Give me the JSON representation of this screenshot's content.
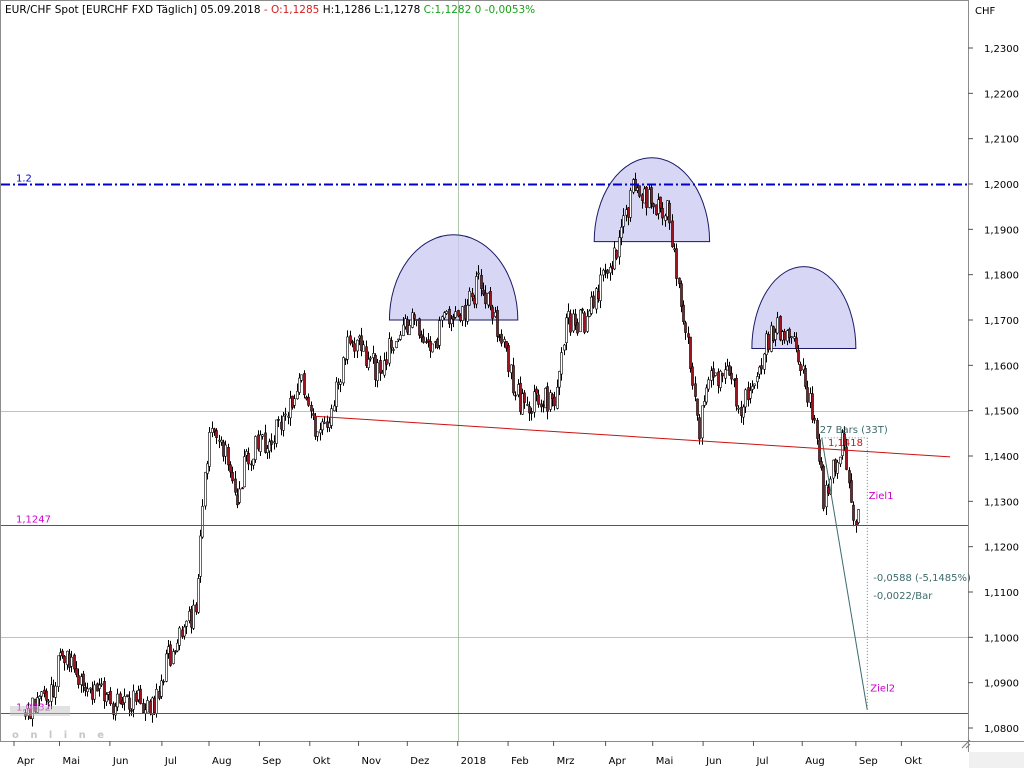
{
  "header": {
    "title": "EUR/CHF Spot [EURCHF FXD  Täglich] 05.09.2018",
    "ohlc": [
      {
        "text": " - O:1,1285",
        "color": "#d42020"
      },
      {
        "text": " H:1,1286",
        "color": "#000000"
      },
      {
        "text": " L:1,1278",
        "color": "#000000"
      },
      {
        "text": " C:1,1282",
        "color": "#16a316"
      },
      {
        "text": " 0 -0,0053%",
        "color": "#16a316"
      }
    ]
  },
  "chart_data": {
    "type": "candlestick",
    "y_unit": "CHF",
    "ylim": [
      1.077,
      1.2455
    ],
    "y_ticks": [
      {
        "value": 1.08,
        "label": "1,0800"
      },
      {
        "value": 1.09,
        "label": "1,0900"
      },
      {
        "value": 1.1,
        "label": "1,1000"
      },
      {
        "value": 1.11,
        "label": "1,1100"
      },
      {
        "value": 1.12,
        "label": "1,1200"
      },
      {
        "value": 1.13,
        "label": "1,1300"
      },
      {
        "value": 1.14,
        "label": "1,1400"
      },
      {
        "value": 1.15,
        "label": "1,1500"
      },
      {
        "value": 1.16,
        "label": "1,1600"
      },
      {
        "value": 1.17,
        "label": "1,1700"
      },
      {
        "value": 1.18,
        "label": "1,1800"
      },
      {
        "value": 1.19,
        "label": "1,1900"
      },
      {
        "value": 1.2,
        "label": "1,2000"
      },
      {
        "value": 1.21,
        "label": "1,2100"
      },
      {
        "value": 1.22,
        "label": "1,2200"
      },
      {
        "value": 1.23,
        "label": "1,2300"
      }
    ],
    "x_ticks": [
      {
        "date": "2017-04-03",
        "label": "Apr"
      },
      {
        "date": "2017-05-01",
        "label": "Mai"
      },
      {
        "date": "2017-06-01",
        "label": "Jun"
      },
      {
        "date": "2017-07-03",
        "label": "Jul"
      },
      {
        "date": "2017-08-01",
        "label": "Aug"
      },
      {
        "date": "2017-09-01",
        "label": "Sep"
      },
      {
        "date": "2017-10-02",
        "label": "Okt"
      },
      {
        "date": "2017-11-01",
        "label": "Nov"
      },
      {
        "date": "2017-12-01",
        "label": "Dez"
      },
      {
        "date": "2018-01-01",
        "label": "2018"
      },
      {
        "date": "2018-02-01",
        "label": "Feb"
      },
      {
        "date": "2018-03-01",
        "label": "Mrz"
      },
      {
        "date": "2018-04-02",
        "label": "Apr"
      },
      {
        "date": "2018-05-01",
        "label": "Mai"
      },
      {
        "date": "2018-06-01",
        "label": "Jun"
      },
      {
        "date": "2018-07-02",
        "label": "Jul"
      },
      {
        "date": "2018-08-01",
        "label": "Aug"
      },
      {
        "date": "2018-09-03",
        "label": "Sep"
      },
      {
        "date": "2018-10-01",
        "label": "Okt"
      }
    ],
    "price_path": [
      [
        "2017-04-10",
        1.0835
      ],
      [
        "2017-04-24",
        1.086
      ],
      [
        "2017-05-03",
        1.097
      ],
      [
        "2017-05-12",
        1.092
      ],
      [
        "2017-05-24",
        1.088
      ],
      [
        "2017-06-06",
        1.085
      ],
      [
        "2017-06-20",
        1.0865
      ],
      [
        "2017-06-27",
        1.0845
      ],
      [
        "2017-07-05",
        1.094
      ],
      [
        "2017-07-14",
        1.101
      ],
      [
        "2017-07-24",
        1.106
      ],
      [
        "2017-07-28",
        1.13
      ],
      [
        "2017-08-03",
        1.148
      ],
      [
        "2017-08-10",
        1.142
      ],
      [
        "2017-08-17",
        1.13
      ],
      [
        "2017-08-24",
        1.14
      ],
      [
        "2017-09-04",
        1.143
      ],
      [
        "2017-09-18",
        1.15
      ],
      [
        "2017-09-27",
        1.157
      ],
      [
        "2017-10-06",
        1.145
      ],
      [
        "2017-10-16",
        1.151
      ],
      [
        "2017-10-25",
        1.164
      ],
      [
        "2017-11-03",
        1.164
      ],
      [
        "2017-11-14",
        1.158
      ],
      [
        "2017-11-24",
        1.167
      ],
      [
        "2017-12-04",
        1.169
      ],
      [
        "2017-12-15",
        1.164
      ],
      [
        "2017-12-27",
        1.171
      ],
      [
        "2018-01-05",
        1.172
      ],
      [
        "2018-01-15",
        1.179
      ],
      [
        "2018-01-24",
        1.17
      ],
      [
        "2018-02-01",
        1.16
      ],
      [
        "2018-02-09",
        1.151
      ],
      [
        "2018-02-20",
        1.153
      ],
      [
        "2018-03-01",
        1.151
      ],
      [
        "2018-03-09",
        1.169
      ],
      [
        "2018-03-20",
        1.17
      ],
      [
        "2018-03-28",
        1.176
      ],
      [
        "2018-04-09",
        1.186
      ],
      [
        "2018-04-19",
        1.199
      ],
      [
        "2018-04-30",
        1.196
      ],
      [
        "2018-05-10",
        1.195
      ],
      [
        "2018-05-18",
        1.176
      ],
      [
        "2018-05-25",
        1.158
      ],
      [
        "2018-05-29",
        1.145
      ],
      [
        "2018-06-05",
        1.156
      ],
      [
        "2018-06-15",
        1.158
      ],
      [
        "2018-06-25",
        1.151
      ],
      [
        "2018-07-04",
        1.158
      ],
      [
        "2018-07-10",
        1.165
      ],
      [
        "2018-07-16",
        1.169
      ],
      [
        "2018-07-25",
        1.165
      ],
      [
        "2018-08-02",
        1.158
      ],
      [
        "2018-08-10",
        1.144
      ],
      [
        "2018-08-14",
        1.13
      ],
      [
        "2018-08-21",
        1.138
      ],
      [
        "2018-08-27",
        1.144
      ],
      [
        "2018-08-31",
        1.13
      ],
      [
        "2018-09-03",
        1.126
      ],
      [
        "2018-09-05",
        1.1282
      ]
    ],
    "horizontal_lines": [
      {
        "value": 1.2,
        "label": "1.2",
        "color": "#0000c8",
        "style": "dash-dot"
      },
      {
        "value": 1.1247,
        "label": "1,1247",
        "color": "#d400d4",
        "style": "solid"
      },
      {
        "value": 1.0832,
        "label": "1,0832",
        "color": "#d400d4",
        "style": "solid"
      }
    ],
    "grid_lines": [
      1.1,
      1.15
    ],
    "neckline": {
      "from": [
        "2017-10-04",
        1.1488
      ],
      "to": [
        "2018-10-31",
        1.1398
      ],
      "color": "#cc1111",
      "label": "1,1418"
    },
    "shoulders": [
      {
        "name": "left",
        "from": "2017-11-20",
        "to": "2018-02-07",
        "top": 1.1888,
        "base": 1.17
      },
      {
        "name": "head",
        "from": "2018-03-26",
        "to": "2018-06-05",
        "top": 1.2058,
        "base": 1.1873
      },
      {
        "name": "right",
        "from": "2018-07-01",
        "to": "2018-09-03",
        "top": 1.1818,
        "base": 1.1637
      }
    ],
    "measure": {
      "anchor": [
        "2018-08-13",
        1.144
      ],
      "target": [
        "2018-09-10",
        1.084
      ],
      "bars_label": "27 Bars (33T)",
      "change_label": "-0,0588 (-5,1485%)",
      "per_bar_label": "-0,0022/Bar"
    },
    "targets": [
      {
        "label": "Ziel1",
        "date": "2018-09-09",
        "value": 1.1305
      },
      {
        "label": "Ziel2",
        "date": "2018-09-10",
        "value": 1.088
      }
    ],
    "vertical_marker": "2018-01-01",
    "watermark": "online"
  }
}
